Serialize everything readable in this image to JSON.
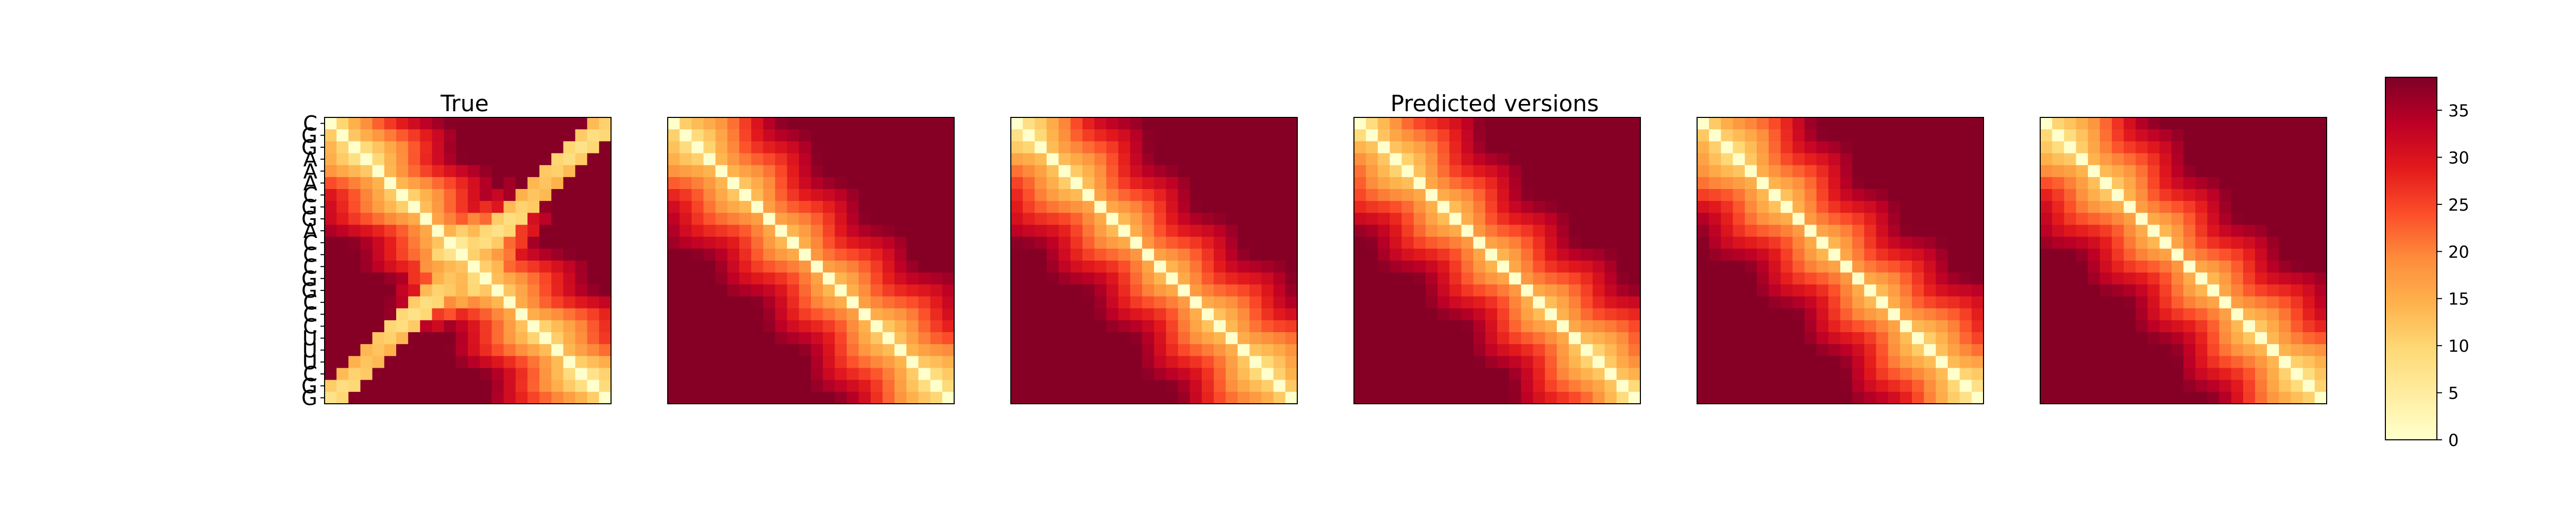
{
  "titles": {
    "left": "True",
    "center": "Predicted versions"
  },
  "sequence": [
    "C",
    "G",
    "G",
    "A",
    "A",
    "A",
    "C",
    "G",
    "G",
    "A",
    "C",
    "C",
    "C",
    "G",
    "G",
    "C",
    "C",
    "C",
    "U",
    "U",
    "U",
    "C",
    "G",
    "G"
  ],
  "colorbar": {
    "ticks": [
      0,
      5,
      10,
      15,
      20,
      25,
      30,
      35
    ],
    "max": 38.5,
    "colormap": "YlOrRd"
  },
  "chart_data": [
    {
      "type": "heatmap",
      "title": "True",
      "matrix": "pairwise distance map, 24x24, diagonal 0",
      "features": "cross-shaped low band, maxima ~38 at middle edges"
    },
    {
      "type": "heatmap",
      "title": "",
      "matrix": "predicted distance map 1, 24x24, diagonal 0"
    },
    {
      "type": "heatmap",
      "title": "",
      "matrix": "predicted distance map 2, 24x24, diagonal 0"
    },
    {
      "type": "heatmap",
      "title": "",
      "matrix": "predicted distance map 3, 24x24, diagonal 0"
    },
    {
      "type": "heatmap",
      "title": "",
      "matrix": "predicted distance map 4, 24x24, diagonal 0"
    },
    {
      "type": "heatmap",
      "title": "",
      "matrix": "predicted distance map 5, 24x24, diagonal 0"
    }
  ]
}
